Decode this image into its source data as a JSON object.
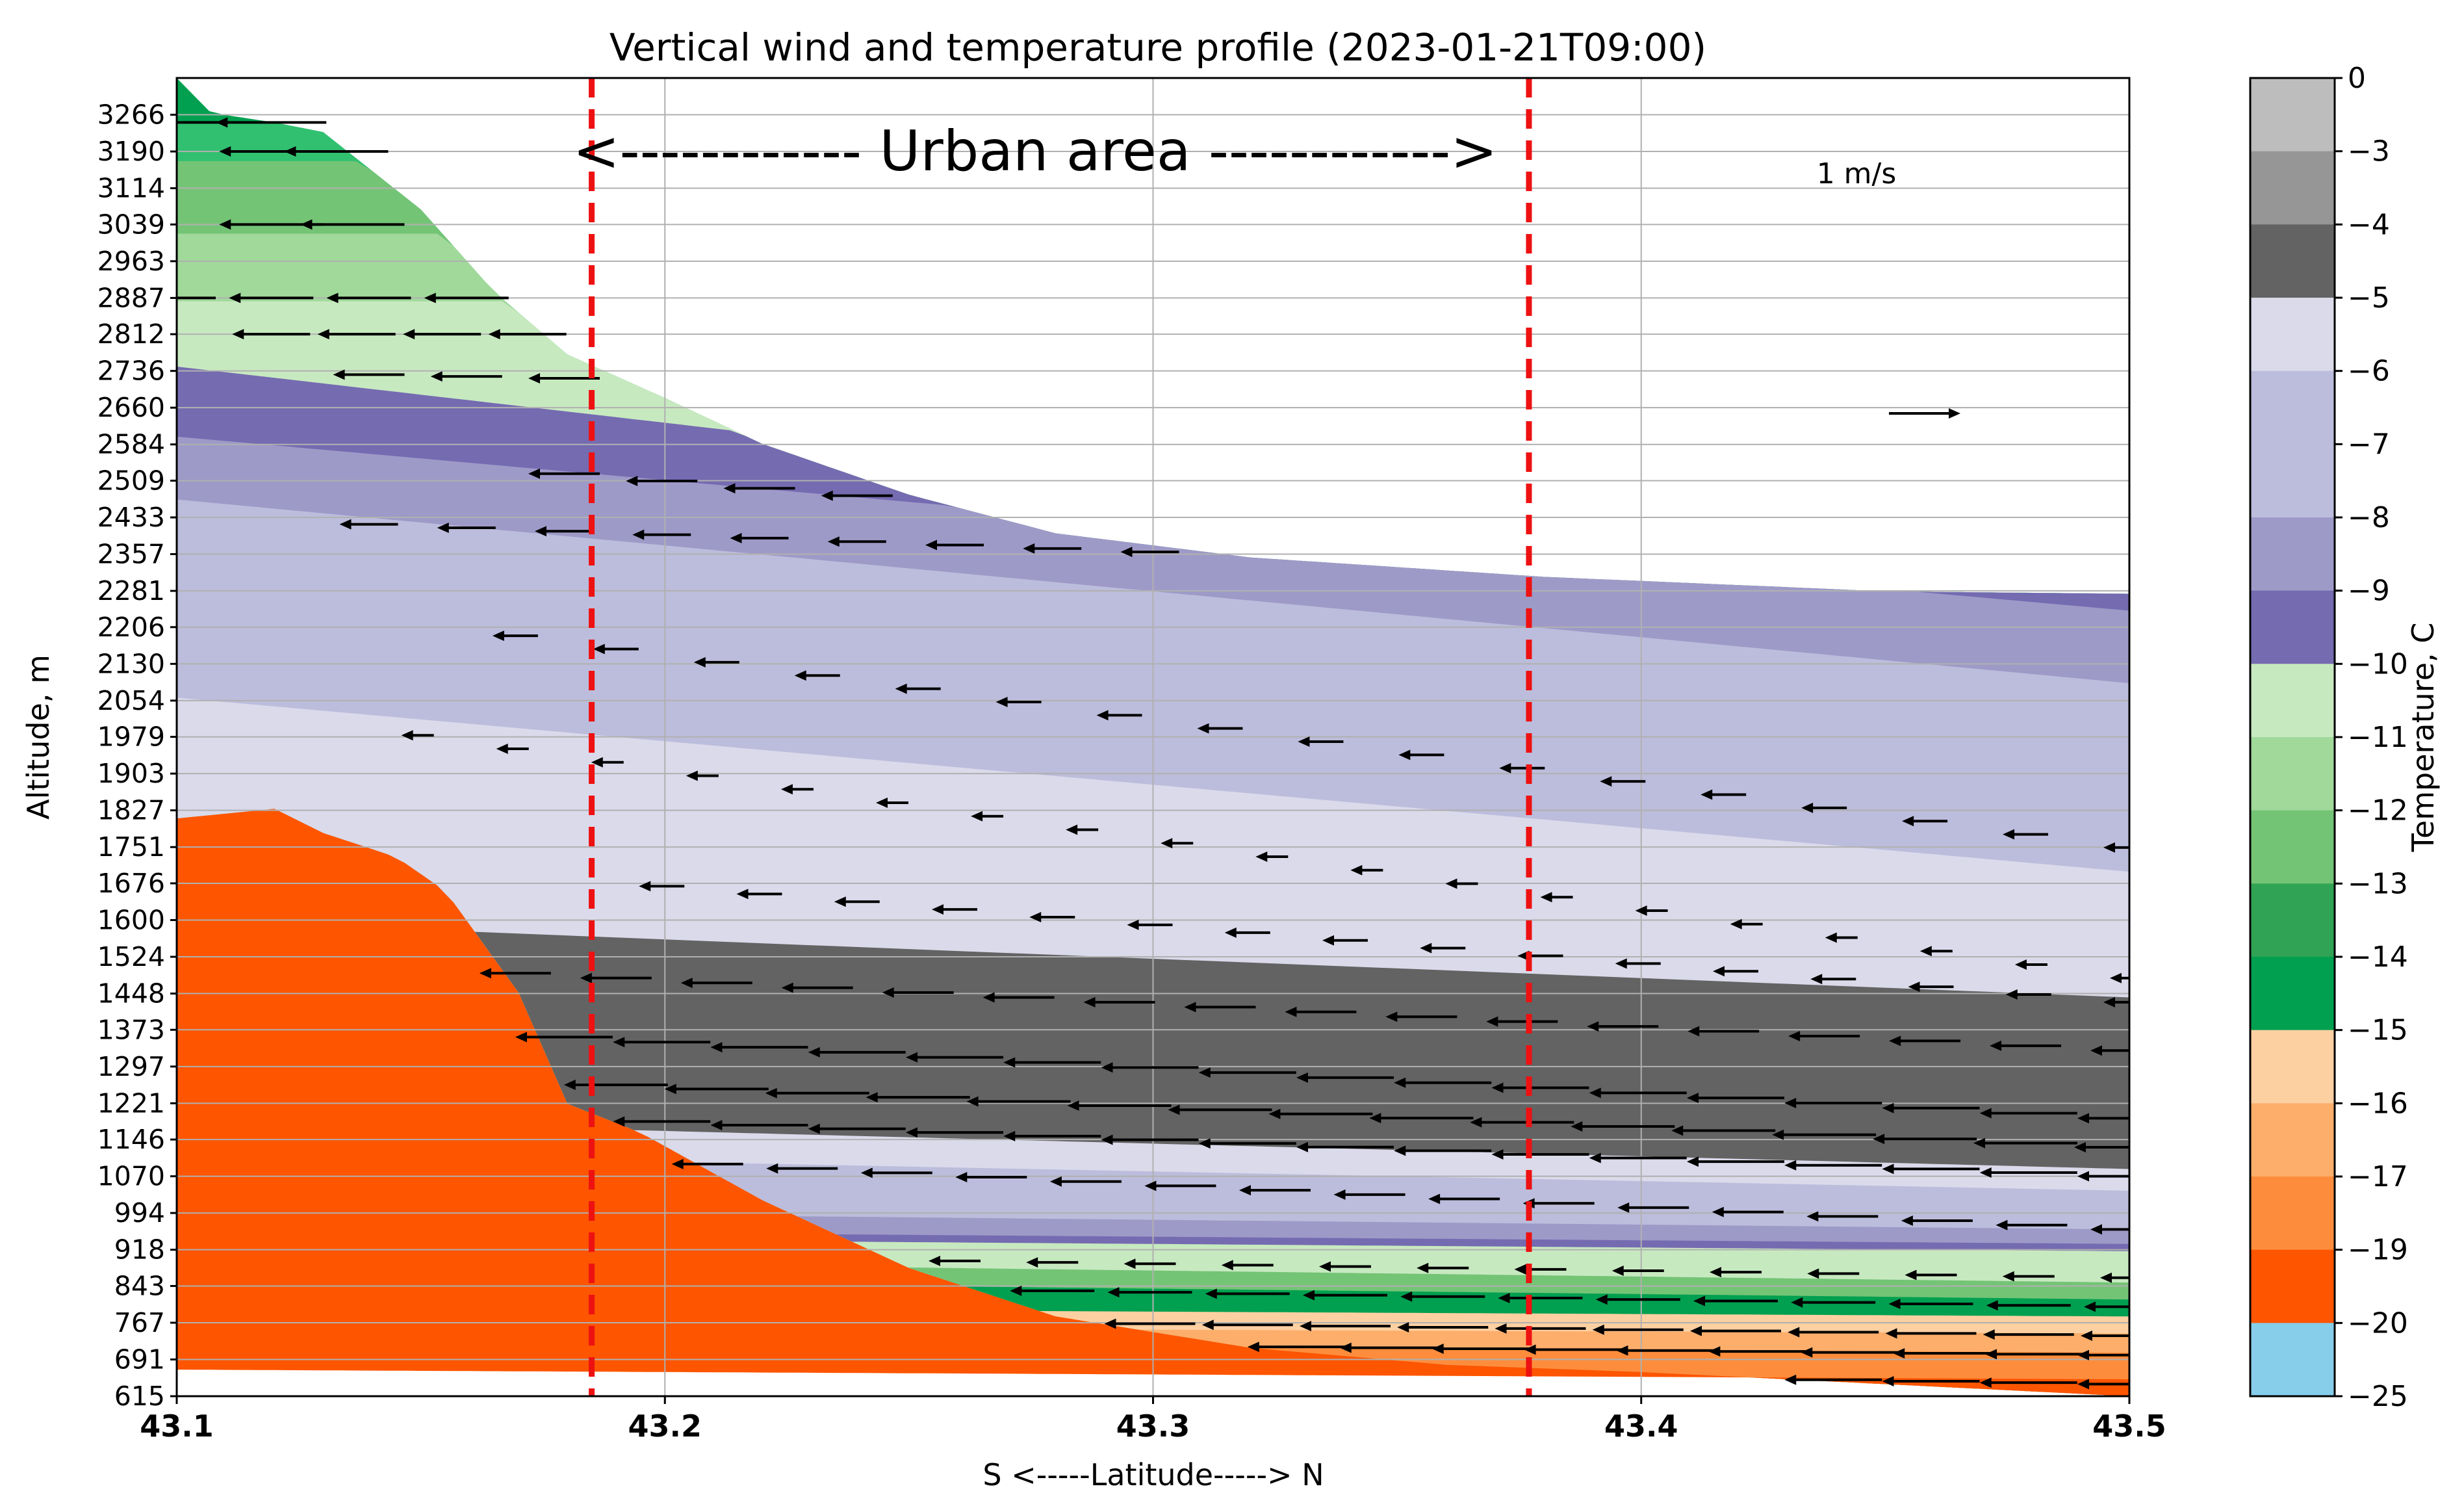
{
  "chart_data": {
    "type": "heatmap",
    "title": "Vertical wind and temperature profile (2023-01-21T09:00)",
    "xlabel": "S <-----Latitude-----> N",
    "ylabel": "Altitude, m",
    "xlim": [
      43.1,
      43.5
    ],
    "ylim": [
      615,
      3342
    ],
    "x_ticks": [
      "43.1",
      "43.2",
      "43.3",
      "43.4",
      "43.5"
    ],
    "x_tick_values": [
      43.1,
      43.2,
      43.3,
      43.4,
      43.5
    ],
    "y_ticks": [
      "615",
      "691",
      "767",
      "843",
      "918",
      "994",
      "1070",
      "1146",
      "1221",
      "1297",
      "1373",
      "1448",
      "1524",
      "1600",
      "1676",
      "1751",
      "1827",
      "1903",
      "1979",
      "2054",
      "2130",
      "2206",
      "2281",
      "2357",
      "2433",
      "2509",
      "2584",
      "2660",
      "2736",
      "2812",
      "2887",
      "2963",
      "3039",
      "3114",
      "3190",
      "3266"
    ],
    "y_tick_values": [
      615,
      691,
      767,
      843,
      918,
      994,
      1070,
      1146,
      1221,
      1297,
      1373,
      1448,
      1524,
      1600,
      1676,
      1751,
      1827,
      1903,
      1979,
      2054,
      2130,
      2206,
      2281,
      2357,
      2433,
      2509,
      2584,
      2660,
      2736,
      2812,
      2887,
      2963,
      3039,
      3114,
      3190,
      3266
    ],
    "grid": true,
    "colorbar": {
      "label": "Temperature, C",
      "tick_labels": [
        "0",
        "−3",
        "−4",
        "−5",
        "−6",
        "−7",
        "−8",
        "−9",
        "−10",
        "−11",
        "−12",
        "−13",
        "−14",
        "−15",
        "−16",
        "−17",
        "−19",
        "−20",
        "−25"
      ],
      "bins": [
        {
          "from": -3,
          "to": 0,
          "color": "#bdbdbd"
        },
        {
          "from": -4,
          "to": -3,
          "color": "#969696"
        },
        {
          "from": -5,
          "to": -4,
          "color": "#636363"
        },
        {
          "from": -6,
          "to": -5,
          "color": "#dadaeb"
        },
        {
          "from": -7,
          "to": -6,
          "color": "#bcbddc"
        },
        {
          "from": -8,
          "to": -7,
          "color": "#bcbddc"
        },
        {
          "from": -9,
          "to": -8,
          "color": "#9e9ac8"
        },
        {
          "from": -10,
          "to": -9,
          "color": "#756bb1"
        },
        {
          "from": -11,
          "to": -10,
          "color": "#c7e9c0"
        },
        {
          "from": -12,
          "to": -11,
          "color": "#a1d99b"
        },
        {
          "from": -13,
          "to": -12,
          "color": "#74c476"
        },
        {
          "from": -14,
          "to": -13,
          "color": "#31a354"
        },
        {
          "from": -15,
          "to": -14,
          "color": "#00a050"
        },
        {
          "from": -16,
          "to": -15,
          "color": "#fdd0a2"
        },
        {
          "from": -17,
          "to": -16,
          "color": "#fdae6b"
        },
        {
          "from": -19,
          "to": -17,
          "color": "#fd8d3c"
        },
        {
          "from": -20,
          "to": -19,
          "color": "#fd5500"
        },
        {
          "from": -25,
          "to": -20,
          "color": "#87ceeb"
        }
      ]
    },
    "terrain_top": [
      {
        "x": 43.1,
        "y": 3342
      },
      {
        "x": 43.107,
        "y": 3270
      },
      {
        "x": 43.12,
        "y": 3250
      },
      {
        "x": 43.13,
        "y": 3230
      },
      {
        "x": 43.15,
        "y": 3070
      },
      {
        "x": 43.165,
        "y": 2900
      },
      {
        "x": 43.18,
        "y": 2770
      },
      {
        "x": 43.2,
        "y": 2680
      },
      {
        "x": 43.22,
        "y": 2585
      },
      {
        "x": 43.25,
        "y": 2480
      },
      {
        "x": 43.28,
        "y": 2400
      },
      {
        "x": 43.32,
        "y": 2350
      },
      {
        "x": 43.38,
        "y": 2310
      },
      {
        "x": 43.45,
        "y": 2280
      },
      {
        "x": 43.5,
        "y": 2275
      }
    ],
    "terrain_bottom": [
      {
        "x": 43.1,
        "y": 1810
      },
      {
        "x": 43.12,
        "y": 1830
      },
      {
        "x": 43.13,
        "y": 1780
      },
      {
        "x": 43.145,
        "y": 1730
      },
      {
        "x": 43.155,
        "y": 1660
      },
      {
        "x": 43.17,
        "y": 1450
      },
      {
        "x": 43.18,
        "y": 1220
      },
      {
        "x": 43.195,
        "y": 1160
      },
      {
        "x": 43.22,
        "y": 1020
      },
      {
        "x": 43.25,
        "y": 880
      },
      {
        "x": 43.28,
        "y": 780
      },
      {
        "x": 43.32,
        "y": 715
      },
      {
        "x": 43.36,
        "y": 680
      },
      {
        "x": 43.4,
        "y": 665
      },
      {
        "x": 43.45,
        "y": 640
      },
      {
        "x": 43.5,
        "y": 615
      }
    ],
    "layers": [
      {
        "temp": -14,
        "color": "#00a050",
        "y_west": 3342,
        "y_east": 3342
      },
      {
        "temp": -13,
        "color": "#31c070",
        "y_west": 3250,
        "y_east": 3250
      },
      {
        "temp": -12,
        "color": "#74c476",
        "y_west": 3170,
        "y_east": 3170
      },
      {
        "temp": -11,
        "color": "#a1d99b",
        "y_west": 3020,
        "y_east": 3020
      },
      {
        "temp": -10,
        "color": "#c7e9c0",
        "y_west": 2880,
        "y_east": 2880
      },
      {
        "temp": -9,
        "color": "#756bb1",
        "y_west": 2745,
        "y_east": 2280
      },
      {
        "temp": -8,
        "color": "#9e9ac8",
        "y_west": 2600,
        "y_east": 2240
      },
      {
        "temp": -7,
        "color": "#bcbddc",
        "y_west": 2470,
        "y_east": 2090
      },
      {
        "temp": -6,
        "color": "#dadaeb",
        "y_west": 2060,
        "y_east": 1700
      },
      {
        "temp": -4,
        "color": "#636363",
        "y_west": 1600,
        "y_east": 1440
      },
      {
        "temp": -6,
        "color": "#dadaeb",
        "y_west": 1190,
        "y_east": 1085
      },
      {
        "temp": -7,
        "color": "#bcbddc",
        "y_west": 1120,
        "y_east": 1040
      },
      {
        "temp": -8,
        "color": "#9e9ac8",
        "y_west": 1000,
        "y_east": 960
      },
      {
        "temp": -9,
        "color": "#756bb1",
        "y_west": 960,
        "y_east": 930
      },
      {
        "temp": -10,
        "color": "#c7e9c0",
        "y_west": 945,
        "y_east": 915
      },
      {
        "temp": -12,
        "color": "#74c476",
        "y_west": 900,
        "y_east": 850
      },
      {
        "temp": -14,
        "color": "#00a050",
        "y_west": 860,
        "y_east": 815
      },
      {
        "temp": -16,
        "color": "#fdd0a2",
        "y_west": 800,
        "y_east": 780
      },
      {
        "temp": -17,
        "color": "#fdae6b",
        "y_west": 760,
        "y_east": 745
      },
      {
        "temp": -19,
        "color": "#fd8d3c",
        "y_west": 730,
        "y_east": 705
      },
      {
        "temp": -20,
        "color": "#fd5500",
        "y_west": 670,
        "y_east": 650
      }
    ],
    "dark_band_west_top": 1600,
    "wind_streams": [
      {
        "y_west": 3250,
        "y_east": 3250,
        "x_from": 43.1,
        "x_to": 43.16,
        "speed": 1.6
      },
      {
        "y_west": 3190,
        "y_east": 3190,
        "x_from": 43.12,
        "x_to": 43.16,
        "speed": 1.5
      },
      {
        "y_west": 3039,
        "y_east": 3039,
        "x_from": 43.12,
        "x_to": 43.17,
        "speed": 1.5
      },
      {
        "y_west": 2887,
        "y_east": 2887,
        "x_from": 43.1,
        "x_to": 43.18,
        "speed": 1.2
      },
      {
        "y_west": 2812,
        "y_east": 2812,
        "x_from": 43.12,
        "x_to": 43.19,
        "speed": 1.1
      },
      {
        "y_west": 2736,
        "y_east": 2660,
        "x_from": 43.14,
        "x_to": 43.22,
        "speed": 1.0
      },
      {
        "y_west": 2584,
        "y_east": 2281,
        "x_from": 43.18,
        "x_to": 43.5,
        "speed": 1.0
      },
      {
        "y_west": 2433,
        "y_east": 2290,
        "x_from": 43.14,
        "x_to": 43.38,
        "speed": 0.8
      },
      {
        "y_west": 2281,
        "y_east": 1750,
        "x_from": 43.17,
        "x_to": 43.5,
        "speed": 0.6
      },
      {
        "y_west": 2054,
        "y_east": 1480,
        "x_from": 43.15,
        "x_to": 43.5,
        "speed": 0.4
      },
      {
        "y_west": 1750,
        "y_east": 1430,
        "x_from": 43.2,
        "x_to": 43.5,
        "speed": 0.6
      },
      {
        "y_west": 1524,
        "y_east": 1330,
        "x_from": 43.17,
        "x_to": 43.5,
        "speed": 1.0
      },
      {
        "y_west": 1400,
        "y_east": 1190,
        "x_from": 43.18,
        "x_to": 43.5,
        "speed": 1.4
      },
      {
        "y_west": 1297,
        "y_east": 1130,
        "x_from": 43.17,
        "x_to": 43.5,
        "speed": 1.5
      },
      {
        "y_west": 1221,
        "y_east": 1070,
        "x_from": 43.18,
        "x_to": 43.5,
        "speed": 1.4
      },
      {
        "y_west": 1146,
        "y_east": 960,
        "x_from": 43.19,
        "x_to": 43.5,
        "speed": 1.0
      },
      {
        "y_west": 918,
        "y_east": 860,
        "x_from": 43.24,
        "x_to": 43.5,
        "speed": 0.7
      },
      {
        "y_west": 860,
        "y_east": 800,
        "x_from": 43.26,
        "x_to": 43.5,
        "speed": 1.2
      },
      {
        "y_west": 790,
        "y_east": 740,
        "x_from": 43.28,
        "x_to": 43.5,
        "speed": 1.3
      },
      {
        "y_west": 740,
        "y_east": 700,
        "x_from": 43.33,
        "x_to": 43.5,
        "speed": 1.4
      },
      {
        "y_west": 700,
        "y_east": 640,
        "x_from": 43.36,
        "x_to": 43.5,
        "speed": 1.4
      }
    ],
    "annotations": {
      "urban_boundaries": [
        43.185,
        43.377
      ],
      "urban_text": "<------------ Urban  area ------------>",
      "wind_key_label": "1 m/s",
      "wind_key_speed": 1
    }
  }
}
